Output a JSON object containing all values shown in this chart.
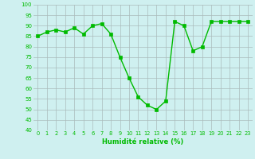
{
  "x": [
    0,
    1,
    2,
    3,
    4,
    5,
    6,
    7,
    8,
    9,
    10,
    11,
    12,
    13,
    14,
    15,
    16,
    17,
    18,
    19,
    20,
    21,
    22,
    23
  ],
  "y": [
    85,
    87,
    88,
    87,
    89,
    86,
    90,
    91,
    86,
    75,
    65,
    56,
    52,
    50,
    54,
    92,
    90,
    78,
    80,
    92,
    92,
    92,
    92,
    92
  ],
  "line_color": "#00bb00",
  "marker_color": "#00bb00",
  "bg_color": "#cff0f0",
  "grid_color": "#aabbbb",
  "xlabel": "Humidité relative (%)",
  "xlabel_color": "#00bb00",
  "tick_color": "#00bb00",
  "ylim": [
    40,
    100
  ],
  "yticks": [
    40,
    45,
    50,
    55,
    60,
    65,
    70,
    75,
    80,
    85,
    90,
    95,
    100
  ],
  "xticks": [
    0,
    1,
    2,
    3,
    4,
    5,
    6,
    7,
    8,
    9,
    10,
    11,
    12,
    13,
    14,
    15,
    16,
    17,
    18,
    19,
    20,
    21,
    22,
    23
  ],
  "xlim": [
    -0.5,
    23.5
  ]
}
